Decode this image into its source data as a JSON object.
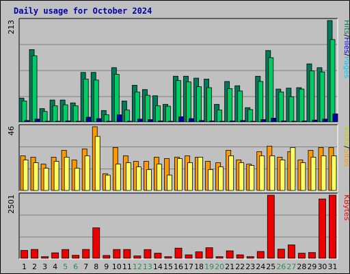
{
  "title": "Daily usage for October 2024",
  "colors": {
    "background": "#c0c0c0",
    "pages": "#00ccff",
    "pages_dark": "#0000aa",
    "files": "#00cc66",
    "hits": "#007a5c",
    "visits": "#ff9900",
    "sites": "#ffff66",
    "kbytes": "#ee0000",
    "weekend_label": "#2e8b57",
    "title": "#0000aa"
  },
  "chart_data": [
    {
      "type": "bar",
      "name": "hits-files-pages",
      "legend": [
        "Pages",
        "Files",
        "Hits"
      ],
      "ymax_label": "213",
      "ylim": [
        0,
        213
      ],
      "categories": [
        "1",
        "2",
        "3",
        "4",
        "5",
        "6",
        "7",
        "8",
        "9",
        "10",
        "11",
        "12",
        "13",
        "14",
        "15",
        "16",
        "17",
        "18",
        "19",
        "20",
        "21",
        "22",
        "23",
        "24",
        "25",
        "26",
        "27",
        "28",
        "29",
        "30",
        "31"
      ],
      "series": [
        {
          "name": "Hits",
          "values": [
            50,
            152,
            28,
            46,
            46,
            40,
            104,
            104,
            24,
            114,
            44,
            77,
            68,
            55,
            37,
            96,
            96,
            92,
            90,
            37,
            85,
            76,
            30,
            96,
            150,
            69,
            71,
            72,
            122,
            114,
            213
          ]
        },
        {
          "name": "Files",
          "values": [
            44,
            139,
            22,
            34,
            36,
            34,
            90,
            88,
            15,
            100,
            25,
            63,
            56,
            34,
            33,
            87,
            84,
            74,
            72,
            25,
            70,
            65,
            26,
            85,
            135,
            63,
            53,
            69,
            107,
            105,
            173
          ]
        },
        {
          "name": "Pages",
          "values": [
            3,
            6,
            1,
            1,
            2,
            1,
            10,
            7,
            1,
            15,
            1,
            6,
            5,
            2,
            1,
            11,
            7,
            3,
            2,
            1,
            2,
            3,
            1,
            5,
            8,
            2,
            1,
            2,
            4,
            6,
            17
          ]
        }
      ]
    },
    {
      "type": "bar",
      "name": "visits-sites",
      "legend": [
        "Sites",
        "Visits"
      ],
      "ymax_label": "46",
      "ylim": [
        0,
        46
      ],
      "categories": [
        "1",
        "2",
        "3",
        "4",
        "5",
        "6",
        "7",
        "8",
        "9",
        "10",
        "11",
        "12",
        "13",
        "14",
        "15",
        "16",
        "17",
        "18",
        "19",
        "20",
        "21",
        "22",
        "23",
        "24",
        "25",
        "26",
        "27",
        "28",
        "29",
        "30",
        "31"
      ],
      "series": [
        {
          "name": "Visits",
          "values": [
            25,
            24,
            19,
            24,
            29,
            22,
            30,
            46,
            12,
            31,
            25,
            21,
            21,
            24,
            23,
            24,
            25,
            24,
            21,
            20,
            29,
            22,
            19,
            28,
            32,
            24,
            28,
            22,
            29,
            31,
            31
          ]
        },
        {
          "name": "Sites",
          "values": [
            22,
            20,
            16,
            21,
            24,
            16,
            25,
            39,
            11,
            19,
            20,
            17,
            15,
            19,
            11,
            23,
            20,
            24,
            15,
            17,
            25,
            20,
            18,
            25,
            25,
            22,
            31,
            20,
            24,
            25,
            25
          ]
        }
      ]
    },
    {
      "type": "bar",
      "name": "kbytes",
      "legend": [
        "KBytes"
      ],
      "ymax_label": "2501",
      "ylim": [
        0,
        2501
      ],
      "categories": [
        "1",
        "2",
        "3",
        "4",
        "5",
        "6",
        "7",
        "8",
        "9",
        "10",
        "11",
        "12",
        "13",
        "14",
        "15",
        "16",
        "17",
        "18",
        "19",
        "20",
        "21",
        "22",
        "23",
        "24",
        "25",
        "26",
        "27",
        "28",
        "29",
        "30",
        "31"
      ],
      "series": [
        {
          "name": "KBytes",
          "values": [
            310,
            350,
            62,
            215,
            347,
            117,
            350,
            1207,
            110,
            348,
            348,
            92,
            345,
            200,
            62,
            402,
            135,
            255,
            418,
            62,
            295,
            135,
            62,
            270,
            2501,
            360,
            530,
            200,
            226,
            2350,
            2501
          ]
        }
      ]
    }
  ],
  "x_labels": [
    {
      "label": "1",
      "weekend": false
    },
    {
      "label": "2",
      "weekend": false
    },
    {
      "label": "3",
      "weekend": false
    },
    {
      "label": "4",
      "weekend": false
    },
    {
      "label": "5",
      "weekend": true
    },
    {
      "label": "6",
      "weekend": true
    },
    {
      "label": "7",
      "weekend": false
    },
    {
      "label": "8",
      "weekend": false
    },
    {
      "label": "9",
      "weekend": false
    },
    {
      "label": "10",
      "weekend": false
    },
    {
      "label": "11",
      "weekend": false
    },
    {
      "label": "12",
      "weekend": true
    },
    {
      "label": "13",
      "weekend": true
    },
    {
      "label": "14",
      "weekend": false
    },
    {
      "label": "15",
      "weekend": false
    },
    {
      "label": "16",
      "weekend": false
    },
    {
      "label": "17",
      "weekend": false
    },
    {
      "label": "18",
      "weekend": false
    },
    {
      "label": "19",
      "weekend": true
    },
    {
      "label": "20",
      "weekend": true
    },
    {
      "label": "21",
      "weekend": false
    },
    {
      "label": "22",
      "weekend": false
    },
    {
      "label": "23",
      "weekend": false
    },
    {
      "label": "24",
      "weekend": false
    },
    {
      "label": "25",
      "weekend": false
    },
    {
      "label": "26",
      "weekend": true
    },
    {
      "label": "27",
      "weekend": true
    },
    {
      "label": "28",
      "weekend": false
    },
    {
      "label": "29",
      "weekend": false
    },
    {
      "label": "30",
      "weekend": false
    },
    {
      "label": "31",
      "weekend": false
    }
  ],
  "legend_separator": "/"
}
